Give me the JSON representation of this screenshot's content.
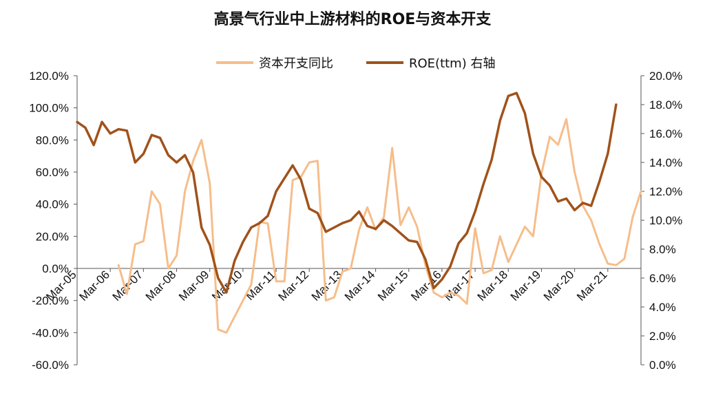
{
  "chart_data": {
    "type": "line",
    "title": "高景气行业中上游材料的ROE与资本开支",
    "series": [
      {
        "name": "资本开支同比",
        "axis": "left",
        "color": "#f6bd8a",
        "values": [
          null,
          null,
          null,
          null,
          null,
          2,
          -16,
          15,
          17,
          48,
          40,
          0,
          8,
          48,
          67,
          80,
          53,
          -38,
          -40,
          -30,
          -20,
          -10,
          29,
          28,
          -8,
          -8,
          55,
          57,
          66,
          67,
          -20,
          -18,
          -2,
          0,
          24,
          38,
          24,
          32,
          75,
          27,
          38,
          26,
          2,
          -15,
          -18,
          -15,
          -17,
          -22,
          25,
          -3,
          -1,
          20,
          4,
          15,
          26,
          20,
          59,
          82,
          77,
          93,
          60,
          39,
          30,
          15,
          3,
          2,
          6,
          32,
          48
        ]
      },
      {
        "name": "ROE(ttm) 右轴",
        "axis": "right",
        "color": "#a0521a",
        "values": [
          16.8,
          16.4,
          15.2,
          16.8,
          16.0,
          16.3,
          16.2,
          14.0,
          14.6,
          15.9,
          15.7,
          14.5,
          14.0,
          14.5,
          13.3,
          9.5,
          8.3,
          6.0,
          5.0,
          7.2,
          8.5,
          9.5,
          9.8,
          10.3,
          12.0,
          12.9,
          13.8,
          12.8,
          10.8,
          10.5,
          9.2,
          9.5,
          9.8,
          10.0,
          10.6,
          9.6,
          9.4,
          10.0,
          9.6,
          9.1,
          8.6,
          8.5,
          7.3,
          5.3,
          5.9,
          6.8,
          8.4,
          9.1,
          10.6,
          12.5,
          14.2,
          16.9,
          18.6,
          18.8,
          17.4,
          14.6,
          13.0,
          12.4,
          11.3,
          11.5,
          10.7,
          11.2,
          11.0,
          12.7,
          14.6,
          18.0
        ]
      }
    ],
    "x_labels": [
      "Mar-05",
      "Mar-06",
      "Mar-07",
      "Mar-08",
      "Mar-09",
      "Mar-10",
      "Mar-11",
      "Mar-12",
      "Mar-13",
      "Mar-14",
      "Mar-15",
      "Mar-16",
      "Mar-17",
      "Mar-18",
      "Mar-19",
      "Mar-20",
      "Mar-21"
    ],
    "x_label_period": 4,
    "y_left": {
      "min": -60,
      "max": 120,
      "step": 20,
      "suffix": "%"
    },
    "y_right": {
      "min": 0,
      "max": 20,
      "step": 2,
      "suffix": "%"
    },
    "legend_position": "top"
  }
}
